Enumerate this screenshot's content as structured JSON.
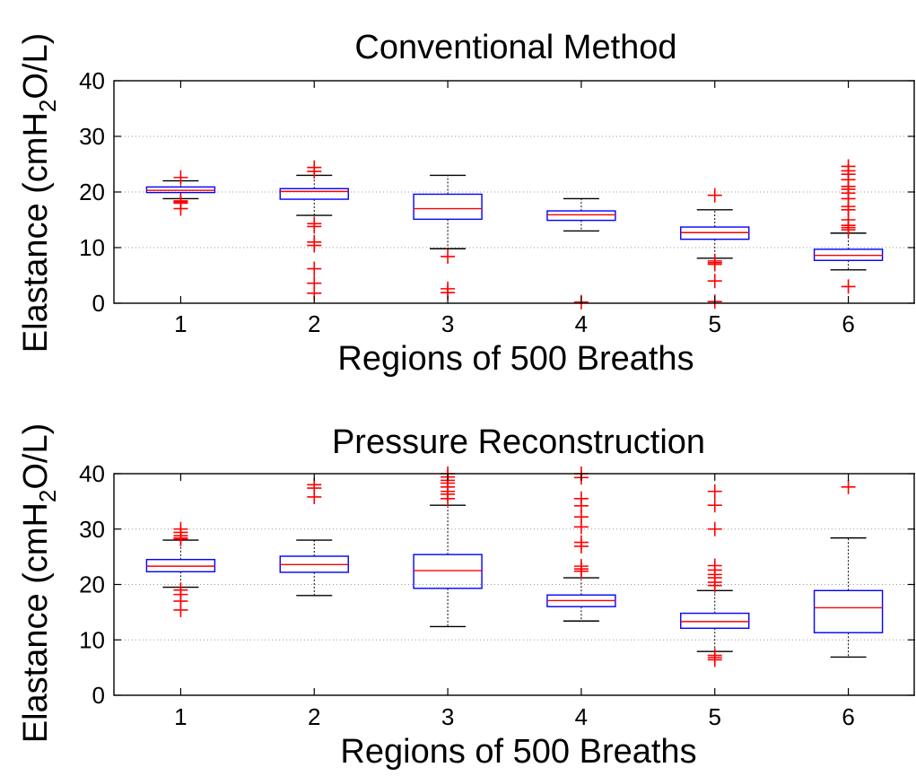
{
  "chart_data": [
    {
      "type": "box",
      "title": "Conventional Method",
      "xlabel": "Regions of 500 Breaths",
      "ylabel_main": "Elastance (cmH",
      "ylabel_sub": "2",
      "ylabel_tail": "O/L)",
      "categories": [
        "1",
        "2",
        "3",
        "4",
        "5",
        "6"
      ],
      "yticks": [
        "0",
        "10",
        "20",
        "30",
        "40"
      ],
      "ylim": [
        0,
        40
      ],
      "grid": true,
      "boxes": [
        {
          "region": "1",
          "whisker_low": 18.8,
          "q1": 19.9,
          "median": 20.3,
          "q3": 20.9,
          "whisker_high": 22.0,
          "outliers": [
            22.6,
            18.4,
            18.2,
            18.0,
            17.0
          ]
        },
        {
          "region": "2",
          "whisker_low": 15.8,
          "q1": 18.7,
          "median": 20.1,
          "q3": 20.6,
          "whisker_high": 23.0,
          "outliers": [
            24.4,
            23.7,
            14.3,
            13.8,
            11.0,
            10.4,
            6.2,
            3.6,
            1.8
          ]
        },
        {
          "region": "3",
          "whisker_low": 9.8,
          "q1": 15.1,
          "median": 17.0,
          "q3": 19.6,
          "whisker_high": 23.0,
          "outliers": [
            8.4,
            2.6,
            1.9
          ]
        },
        {
          "region": "4",
          "whisker_low": 13.0,
          "q1": 14.9,
          "median": 15.9,
          "q3": 16.6,
          "whisker_high": 18.8,
          "outliers": [
            0.2
          ]
        },
        {
          "region": "5",
          "whisker_low": 8.1,
          "q1": 11.5,
          "median": 12.7,
          "q3": 13.7,
          "whisker_high": 16.8,
          "outliers": [
            19.4,
            7.6,
            7.3,
            7.0,
            4.0,
            0.3
          ]
        },
        {
          "region": "6",
          "whisker_low": 6.0,
          "q1": 7.7,
          "median": 8.6,
          "q3": 9.7,
          "whisker_high": 12.6,
          "outliers": [
            24.6,
            23.8,
            23.2,
            22.2,
            21.0,
            20.5,
            19.8,
            18.8,
            17.4,
            16.8,
            15.0,
            14.0,
            13.6,
            13.2,
            3.0
          ]
        }
      ]
    },
    {
      "type": "box",
      "title": "Pressure Reconstruction",
      "xlabel": "Regions of 500 Breaths",
      "ylabel_main": "Elastance (cmH",
      "ylabel_sub": "2",
      "ylabel_tail": "O/L)",
      "categories": [
        "1",
        "2",
        "3",
        "4",
        "5",
        "6"
      ],
      "yticks": [
        "0",
        "10",
        "20",
        "30",
        "40"
      ],
      "ylim": [
        0,
        40
      ],
      "grid": true,
      "boxes": [
        {
          "region": "1",
          "whisker_low": 19.5,
          "q1": 22.3,
          "median": 23.3,
          "q3": 24.5,
          "whisker_high": 28.0,
          "outliers": [
            30.0,
            29.4,
            28.8,
            28.4,
            28.2,
            19.0,
            18.2,
            17.0,
            15.4
          ]
        },
        {
          "region": "2",
          "whisker_low": 18.0,
          "q1": 22.2,
          "median": 23.6,
          "q3": 25.1,
          "whisker_high": 28.0,
          "outliers": [
            38.0,
            37.4,
            35.8
          ]
        },
        {
          "region": "3",
          "whisker_low": 12.4,
          "q1": 19.3,
          "median": 22.5,
          "q3": 25.4,
          "whisker_high": 34.3,
          "outliers": [
            40.0,
            39.4,
            38.8,
            38.3,
            37.6,
            36.8,
            36.3,
            35.5
          ]
        },
        {
          "region": "4",
          "whisker_low": 13.4,
          "q1": 16.0,
          "median": 17.1,
          "q3": 18.1,
          "whisker_high": 21.2,
          "outliers": [
            40.0,
            39.3,
            35.5,
            34.2,
            32.2,
            30.4,
            27.6,
            26.9,
            23.3,
            22.8,
            22.4
          ]
        },
        {
          "region": "5",
          "whisker_low": 7.9,
          "q1": 12.1,
          "median": 13.3,
          "q3": 14.8,
          "whisker_high": 18.9,
          "outliers": [
            36.8,
            34.3,
            30.0,
            23.4,
            22.6,
            21.8,
            21.2,
            20.4,
            19.8,
            7.2,
            6.8,
            6.4
          ]
        },
        {
          "region": "6",
          "whisker_low": 6.9,
          "q1": 11.3,
          "median": 15.8,
          "q3": 18.9,
          "whisker_high": 28.4,
          "outliers": [
            37.6
          ]
        }
      ]
    }
  ],
  "colors": {
    "box": "#0000ff",
    "median": "#ff0000",
    "outlier": "#ff0000",
    "whisker": "#000000",
    "grid": "#9a9a9a",
    "axis": "#000000"
  }
}
